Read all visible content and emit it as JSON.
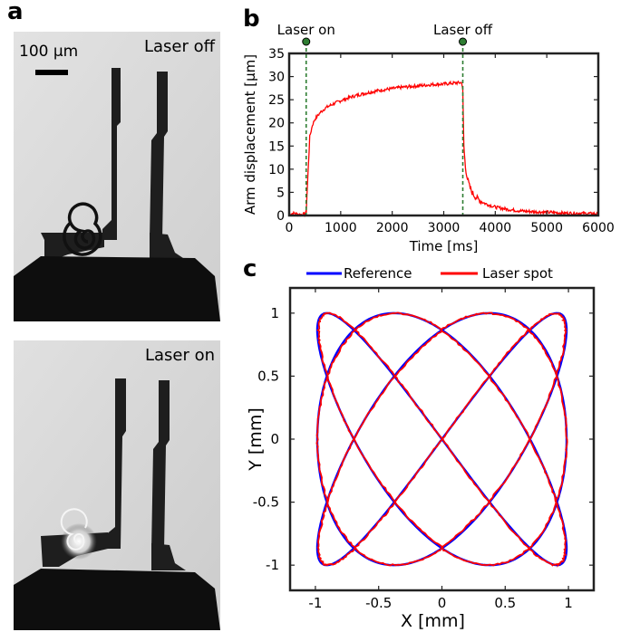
{
  "panels": {
    "a": "a",
    "b": "b",
    "c": "c"
  },
  "micrographs": {
    "top_label": "Laser off",
    "bottom_label": "Laser on",
    "scale_bar_label": "100 µm"
  },
  "chart_data": [
    {
      "type": "line",
      "panel": "b",
      "title": "",
      "xlabel": "Time [ms]",
      "ylabel": "Arm displacement [µm]",
      "xlim": [
        0,
        6000
      ],
      "ylim": [
        0,
        35
      ],
      "xticks": [
        0,
        1000,
        2000,
        3000,
        4000,
        5000,
        6000
      ],
      "yticks": [
        0,
        5,
        10,
        15,
        20,
        25,
        30,
        35
      ],
      "grid": false,
      "colors": {
        "series": "#ff0000",
        "markers": "#2e7d32"
      },
      "events": [
        {
          "label": "Laser on",
          "x": 330
        },
        {
          "label": "Laser off",
          "x": 3370
        }
      ],
      "series": [
        {
          "x": [
            0,
            100,
            200,
            300,
            330,
            360,
            400,
            450,
            500,
            600,
            700,
            800,
            1000,
            1200,
            1400,
            1600,
            1800,
            2000,
            2200,
            2400,
            2600,
            2800,
            3000,
            3200,
            3350,
            3370,
            3390,
            3420,
            3460,
            3500,
            3550,
            3600,
            3700,
            3800,
            3900,
            4000,
            4200,
            4400,
            4600,
            4800,
            5000,
            5200,
            5400,
            5600,
            5800,
            6000
          ],
          "y": [
            0.3,
            0.5,
            0.2,
            0.3,
            0.5,
            8,
            17,
            19.5,
            20.8,
            22.2,
            23.2,
            23.8,
            24.8,
            25.6,
            26.2,
            26.7,
            27.1,
            27.4,
            27.7,
            27.9,
            28.1,
            28.3,
            28.4,
            28.6,
            28.7,
            27,
            15,
            10.5,
            8,
            6.3,
            5,
            4.2,
            3.2,
            2.6,
            2.2,
            1.8,
            1.4,
            1.1,
            0.9,
            0.8,
            0.7,
            0.6,
            0.5,
            0.5,
            0.4,
            0.4
          ]
        }
      ]
    },
    {
      "type": "line",
      "panel": "c",
      "title": "",
      "xlabel": "X [mm]",
      "ylabel": "Y [mm]",
      "xlim": [
        -1.2,
        1.2
      ],
      "ylim": [
        -1.2,
        1.2
      ],
      "xticks": [
        -1,
        -0.5,
        0,
        0.5,
        1
      ],
      "yticks": [
        -1,
        -0.5,
        0,
        0.5,
        1
      ],
      "xtick_labels": [
        "-1",
        "-0.5",
        "0",
        "0.5",
        "1"
      ],
      "ytick_labels": [
        "-1",
        "-0.5",
        "0",
        "0.5",
        "1"
      ],
      "grid": false,
      "legend": "top",
      "curve": "Lissajous, x = sin(3t + π/2), y = sin(4t)",
      "series": [
        {
          "name": "Reference",
          "color": "#0000ff"
        },
        {
          "name": "Laser spot",
          "color": "#ff0000"
        }
      ]
    }
  ]
}
